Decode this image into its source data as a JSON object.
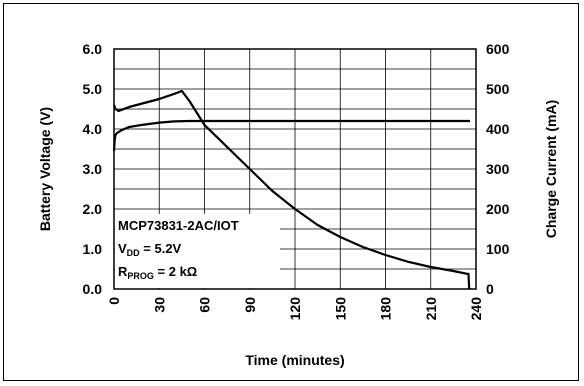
{
  "chart_data": {
    "type": "line",
    "title": "",
    "xlabel": "Time (minutes)",
    "ylabel_left": "Battery Voltage (V)",
    "ylabel_right": "Charge Current (mA)",
    "xlim": [
      0,
      240
    ],
    "ylim_left": [
      0,
      6
    ],
    "ylim_right": [
      0,
      600
    ],
    "x_ticks": [
      "0",
      "30",
      "60",
      "90",
      "120",
      "150",
      "180",
      "210",
      "240"
    ],
    "y_left_ticks": [
      "0.0",
      "1.0",
      "2.0",
      "3.0",
      "4.0",
      "5.0",
      "6.0"
    ],
    "y_right_ticks": [
      "0",
      "100",
      "200",
      "300",
      "400",
      "500",
      "600"
    ],
    "grid": true,
    "series": [
      {
        "axis": "left",
        "color": "#000000",
        "x": [
          0,
          0.5,
          1,
          2,
          5,
          10,
          20,
          30,
          40,
          50,
          60,
          90,
          120,
          150,
          180,
          210,
          234,
          235,
          236
        ],
        "y": [
          3.45,
          3.75,
          3.85,
          3.9,
          3.97,
          4.05,
          4.11,
          4.16,
          4.19,
          4.2,
          4.2,
          4.2,
          4.2,
          4.2,
          4.2,
          4.2,
          4.2,
          4.2,
          4.2
        ]
      },
      {
        "axis": "right",
        "color": "#000000",
        "x": [
          0,
          1,
          3,
          10,
          20,
          30,
          40,
          45,
          50,
          60,
          75,
          90,
          105,
          120,
          135,
          150,
          165,
          180,
          195,
          210,
          225,
          234,
          235,
          235.5
        ],
        "y": [
          460,
          450,
          445,
          455,
          465,
          475,
          488,
          495,
          470,
          410,
          355,
          300,
          245,
          200,
          160,
          130,
          105,
          85,
          68,
          55,
          45,
          38,
          38,
          0
        ]
      }
    ],
    "annotations": {
      "line1": "MCP73831-2AC/IOT",
      "line2_main": "V",
      "line2_sub": "DD",
      "line2_rest": " = 5.2V",
      "line3_main": "R",
      "line3_sub": "PROG",
      "line3_rest": " = 2 kΩ"
    }
  }
}
